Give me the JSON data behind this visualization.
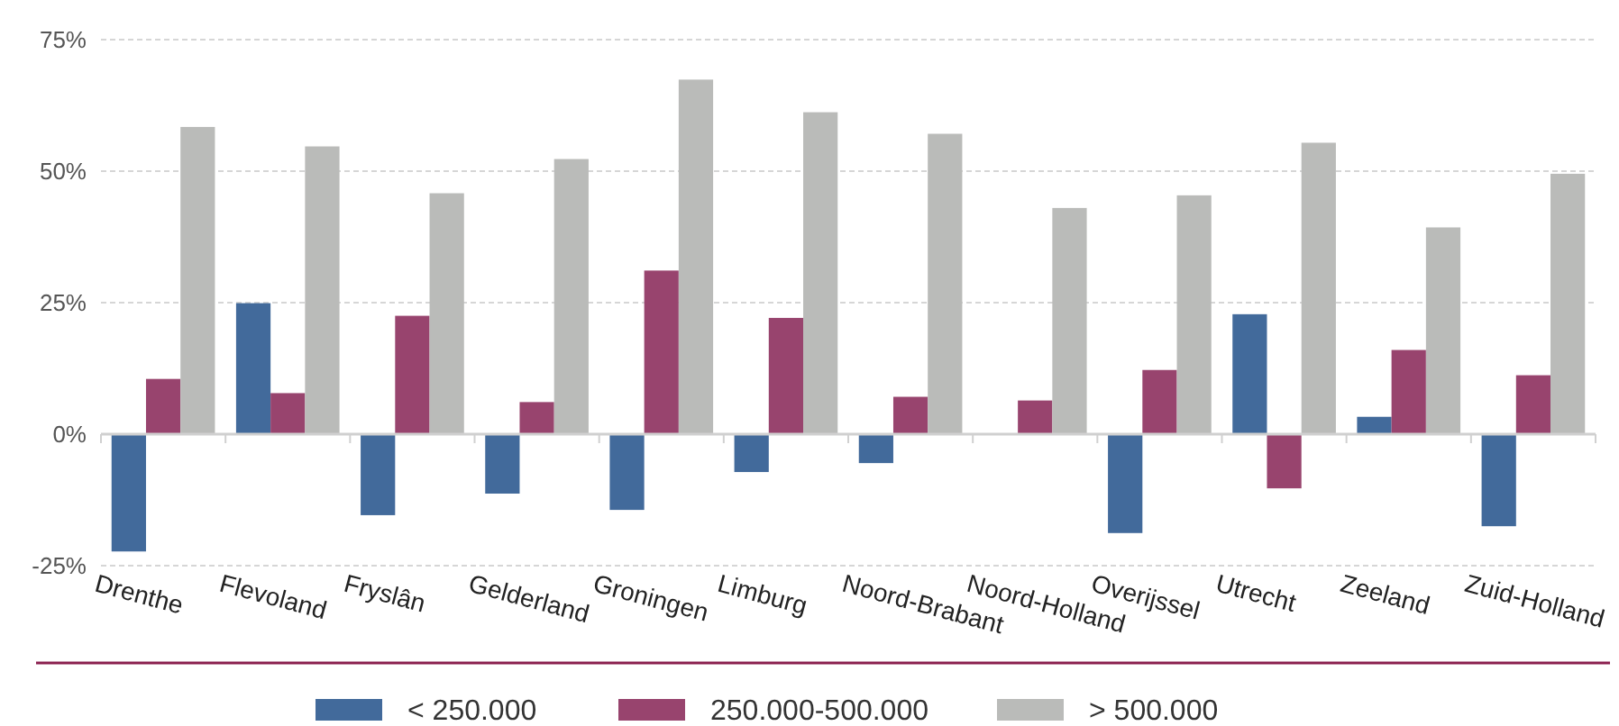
{
  "chart_data": {
    "type": "bar",
    "categories": [
      "Drenthe",
      "Flevoland",
      "Fryslân",
      "Gelderland",
      "Groningen",
      "Limburg",
      "Noord-Brabant",
      "Noord-Holland",
      "Overijssel",
      "Utrecht",
      "Zeeland",
      "Zuid-Holland"
    ],
    "series": [
      {
        "name": "< 250.000",
        "color": "#426a9b",
        "values": [
          -22.3,
          24.9,
          -15.4,
          -11.3,
          -14.4,
          -7.2,
          -5.5,
          0,
          -18.8,
          22.8,
          3.3,
          -17.5
        ]
      },
      {
        "name": "250.000-500.000",
        "color": "#98446e",
        "values": [
          10.5,
          7.8,
          22.5,
          6.1,
          31.1,
          22.1,
          7.1,
          6.4,
          12.2,
          -10.3,
          16.0,
          11.2
        ]
      },
      {
        "name": "> 500.000",
        "color": "#babbb9",
        "values": [
          58.4,
          54.7,
          45.8,
          52.3,
          67.4,
          61.2,
          57.1,
          43.0,
          45.4,
          55.4,
          39.3,
          49.5
        ]
      }
    ],
    "ylim": [
      -25,
      75
    ],
    "yticks": [
      {
        "value": -25,
        "label": "-25%"
      },
      {
        "value": 0,
        "label": "0%"
      },
      {
        "value": 25,
        "label": "25%"
      },
      {
        "value": 50,
        "label": "50%"
      },
      {
        "value": 75,
        "label": "75%"
      }
    ],
    "grid": "y",
    "legend": "bottom"
  }
}
